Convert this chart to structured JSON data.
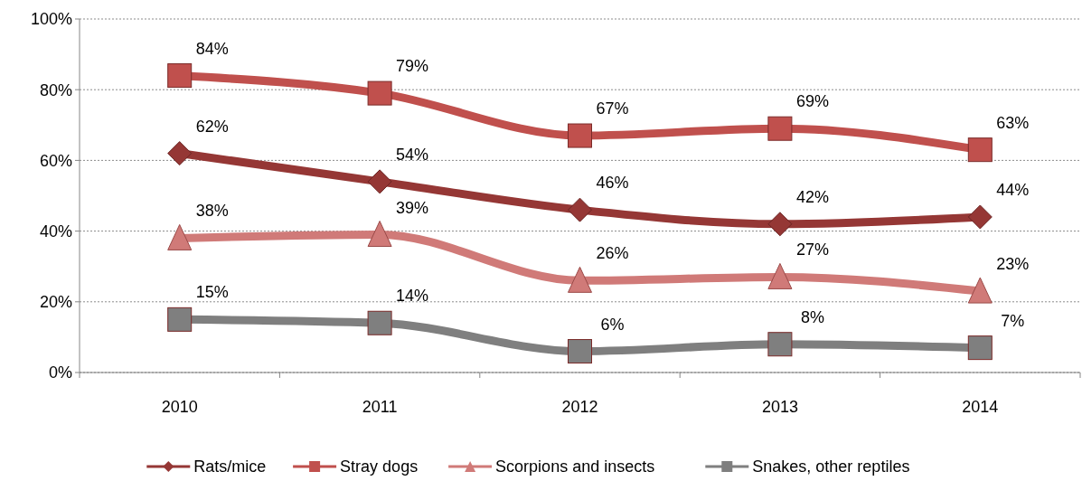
{
  "chart_data": {
    "type": "line",
    "categories": [
      "2010",
      "2011",
      "2012",
      "2013",
      "2014"
    ],
    "series": [
      {
        "name": "Rats/mice",
        "color": "#953735",
        "marker": "diamond",
        "values": [
          62,
          54,
          46,
          42,
          44
        ],
        "value_labels": [
          "62%",
          "54%",
          "46%",
          "42%",
          "44%"
        ]
      },
      {
        "name": "Stray dogs",
        "color": "#c0504d",
        "marker": "square",
        "values": [
          84,
          79,
          67,
          69,
          63
        ],
        "value_labels": [
          "84%",
          "79%",
          "67%",
          "69%",
          "63%"
        ]
      },
      {
        "name": "Scorpions and insects",
        "color": "#d07a78",
        "marker": "triangle",
        "values": [
          38,
          39,
          26,
          27,
          23
        ],
        "value_labels": [
          "38%",
          "39%",
          "26%",
          "27%",
          "23%"
        ]
      },
      {
        "name": "Snakes, other reptiles",
        "color": "#7f7f7f",
        "marker": "square",
        "values": [
          15,
          14,
          6,
          8,
          7
        ],
        "value_labels": [
          "15%",
          "14%",
          "6%",
          "8%",
          "7%"
        ]
      }
    ],
    "ylim": [
      0,
      100
    ],
    "yticks": [
      {
        "value": 0,
        "label": "0%"
      },
      {
        "value": 20,
        "label": "20%"
      },
      {
        "value": 40,
        "label": "40%"
      },
      {
        "value": 60,
        "label": "60%"
      },
      {
        "value": 80,
        "label": "80%"
      },
      {
        "value": 100,
        "label": "100%"
      }
    ],
    "grid": "y",
    "legend": "bottom",
    "line_style": "solid"
  }
}
